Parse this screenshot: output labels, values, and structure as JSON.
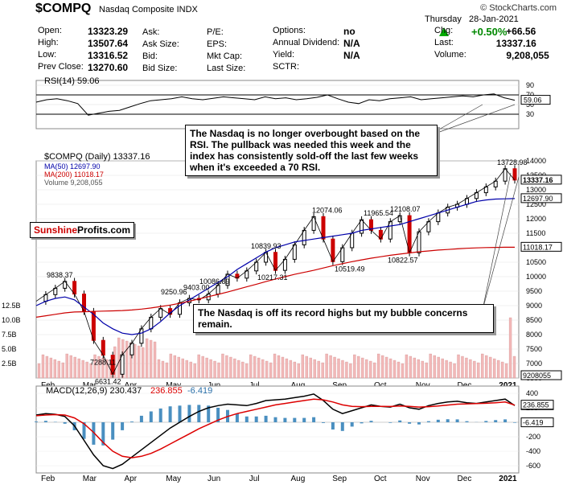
{
  "header": {
    "symbol": "$COMPQ",
    "name": "Nasdaq Composite INDX",
    "source": "© StockCharts.com",
    "day": "Thursday",
    "date": "28-Jan-2021",
    "change_pct": "+0.50%",
    "quote_rows": [
      [
        {
          "l": "Open:",
          "v": "13323.29"
        },
        {
          "l": "Ask:",
          "v": ""
        },
        {
          "l": "P/E:",
          "v": ""
        },
        {
          "l": "Options:",
          "v": "no"
        },
        {
          "l": "Chg:",
          "v": "+66.56"
        }
      ],
      [
        {
          "l": "High:",
          "v": "13507.64"
        },
        {
          "l": "Ask Size:",
          "v": ""
        },
        {
          "l": "EPS:",
          "v": ""
        },
        {
          "l": "Annual Dividend:",
          "v": "N/A"
        },
        {
          "l": "Last:",
          "v": "13337.16"
        }
      ],
      [
        {
          "l": "Low:",
          "v": "13316.52"
        },
        {
          "l": "Bid:",
          "v": ""
        },
        {
          "l": "Mkt Cap:",
          "v": ""
        },
        {
          "l": "Yield:",
          "v": "N/A"
        },
        {
          "l": "Volume:",
          "v": "9,208,055"
        }
      ],
      [
        {
          "l": "Prev Close:",
          "v": "13270.60"
        },
        {
          "l": "Bid Size:",
          "v": ""
        },
        {
          "l": "Last Size:",
          "v": ""
        },
        {
          "l": "SCTR:",
          "v": ""
        },
        {
          "l": "",
          "v": ""
        }
      ]
    ]
  },
  "annotations": {
    "rsi_note": "The Nasdaq is no longer overbought based on the RSI. The pullback was needed this week and the index has consistently sold-off the last few weeks when it's exceeded a 70 RSI.",
    "price_note": "The Nasdaq is off its record highs but my bubble concerns remain.",
    "brand_red": "Sunshine",
    "brand_black": "Profits.com"
  },
  "chart_data": [
    {
      "type": "line",
      "title": "RSI(14) 59.06",
      "ylim": [
        0,
        100
      ],
      "yticks": [
        30,
        50,
        70,
        90
      ],
      "last_value_label": "59.06",
      "series": [
        {
          "name": "RSI(14)",
          "values": [
            55,
            60,
            62,
            58,
            52,
            28,
            32,
            36,
            38,
            45,
            52,
            58,
            60,
            62,
            66,
            62,
            60,
            63,
            66,
            64,
            62,
            60,
            66,
            62,
            64,
            60,
            62,
            65,
            70,
            62,
            55,
            52,
            60,
            58,
            62,
            64,
            66,
            60,
            62,
            64,
            66,
            68,
            66,
            70,
            72,
            64,
            59
          ]
        }
      ]
    },
    {
      "type": "line",
      "title": "$COMPQ (Daily) 13337.16",
      "legend": [
        "MA(50) 12697.90",
        "MA(200) 11018.17",
        "Volume 9,208,055"
      ],
      "x_labels": [
        "Feb",
        "Mar",
        "Apr",
        "May",
        "Jun",
        "Jul",
        "Aug",
        "Sep",
        "Oct",
        "Nov",
        "Dec",
        "2021"
      ],
      "ylim": [
        6500,
        14000
      ],
      "yticks": [
        6500,
        7000,
        7500,
        8000,
        8500,
        9000,
        9500,
        10000,
        10500,
        11000,
        11500,
        12000,
        12500,
        13000,
        13500,
        14000
      ],
      "volume_ticks": [
        "2.5B",
        "5.0B",
        "7.5B",
        "10.0B",
        "12.5B"
      ],
      "price_labels": [
        {
          "t": "9838.37",
          "v": 9838.37
        },
        {
          "t": "7288.11",
          "v": 7288.11
        },
        {
          "t": "6631.42",
          "v": 6631.42
        },
        {
          "t": "9250.96",
          "v": 9250.96
        },
        {
          "t": "9403.00",
          "v": 9403.0
        },
        {
          "t": "10086.89",
          "v": 10086.89
        },
        {
          "t": "10839.93",
          "v": 10839.93
        },
        {
          "t": "10217.31",
          "v": 10217.31
        },
        {
          "t": "12074.06",
          "v": 12074.06
        },
        {
          "t": "10519.49",
          "v": 10519.49
        },
        {
          "t": "11965.54",
          "v": 11965.54
        },
        {
          "t": "12108.07",
          "v": 12108.07
        },
        {
          "t": "10822.57",
          "v": 10822.57
        },
        {
          "t": "13728.98",
          "v": 13728.98
        }
      ],
      "right_labels": [
        {
          "t": "13337.16",
          "v": 13337.16
        },
        {
          "t": "12697.90",
          "v": 12697.9
        },
        {
          "t": "11018.17",
          "v": 11018.17
        },
        {
          "t": "9208055",
          "v": null
        }
      ],
      "series": [
        {
          "name": "$COMPQ",
          "values": [
            9150,
            9380,
            9600,
            9838,
            9400,
            8800,
            7800,
            7288,
            6631,
            7300,
            7700,
            8200,
            8600,
            8900,
            8700,
            9100,
            9250,
            9200,
            9400,
            9700,
            10087,
            9950,
            10200,
            10500,
            10840,
            10217,
            10600,
            11100,
            11600,
            12074,
            11300,
            10519,
            11000,
            11500,
            11966,
            11600,
            11300,
            11900,
            12108,
            10823,
            11550,
            11900,
            12200,
            12400,
            12500,
            12700,
            12900,
            13100,
            13300,
            13729,
            13337
          ]
        },
        {
          "name": "MA(50)",
          "values": [
            9000,
            9150,
            9250,
            9300,
            9200,
            8950,
            8700,
            8400,
            8200,
            8050,
            8000,
            8050,
            8200,
            8450,
            8750,
            9000,
            9200,
            9400,
            9600,
            9800,
            10000,
            10250,
            10450,
            10650,
            10850,
            11000,
            11100,
            11200,
            11250,
            11300,
            11350,
            11400,
            11450,
            11500,
            11600,
            11650,
            11700,
            11750,
            11800,
            11900,
            12000,
            12100,
            12200,
            12300,
            12400,
            12500,
            12600,
            12650,
            12680,
            12690,
            12698
          ]
        },
        {
          "name": "MA(200)",
          "values": [
            8600,
            8650,
            8700,
            8750,
            8780,
            8790,
            8800,
            8810,
            8820,
            8830,
            8850,
            8880,
            8920,
            8970,
            9020,
            9080,
            9150,
            9230,
            9310,
            9390,
            9470,
            9560,
            9650,
            9740,
            9830,
            9920,
            10000,
            10080,
            10150,
            10220,
            10300,
            10380,
            10450,
            10520,
            10580,
            10640,
            10690,
            10740,
            10780,
            10820,
            10860,
            10890,
            10920,
            10940,
            10960,
            10980,
            10995,
            11005,
            11012,
            11016,
            11018
          ]
        }
      ]
    },
    {
      "type": "line",
      "title": "MACD(12,26,9) 230.437, 236.855, -6.419",
      "legend": [
        "MACD(12,26,9) 230.437",
        "236.855",
        "-6.419"
      ],
      "ylim": [
        -700,
        500
      ],
      "yticks": [
        -600,
        -400,
        -200,
        0,
        200,
        400
      ],
      "right_labels": [
        "230.437",
        "236.855",
        "-6.419"
      ],
      "series": [
        {
          "name": "MACD",
          "values": [
            100,
            120,
            110,
            80,
            -50,
            -250,
            -450,
            -600,
            -640,
            -580,
            -480,
            -380,
            -280,
            -180,
            -80,
            0,
            80,
            150,
            200,
            230,
            250,
            240,
            230,
            260,
            300,
            310,
            320,
            340,
            360,
            390,
            300,
            180,
            120,
            160,
            200,
            240,
            220,
            210,
            250,
            200,
            180,
            230,
            260,
            280,
            290,
            270,
            260,
            280,
            300,
            320,
            230
          ]
        },
        {
          "name": "Signal",
          "values": [
            90,
            100,
            105,
            100,
            60,
            -20,
            -140,
            -280,
            -400,
            -470,
            -490,
            -470,
            -430,
            -370,
            -300,
            -230,
            -160,
            -90,
            -30,
            30,
            80,
            120,
            150,
            180,
            210,
            240,
            260,
            280,
            300,
            320,
            310,
            280,
            240,
            220,
            215,
            220,
            220,
            218,
            225,
            220,
            210,
            215,
            225,
            238,
            250,
            255,
            258,
            262,
            270,
            280,
            237
          ]
        }
      ]
    }
  ]
}
